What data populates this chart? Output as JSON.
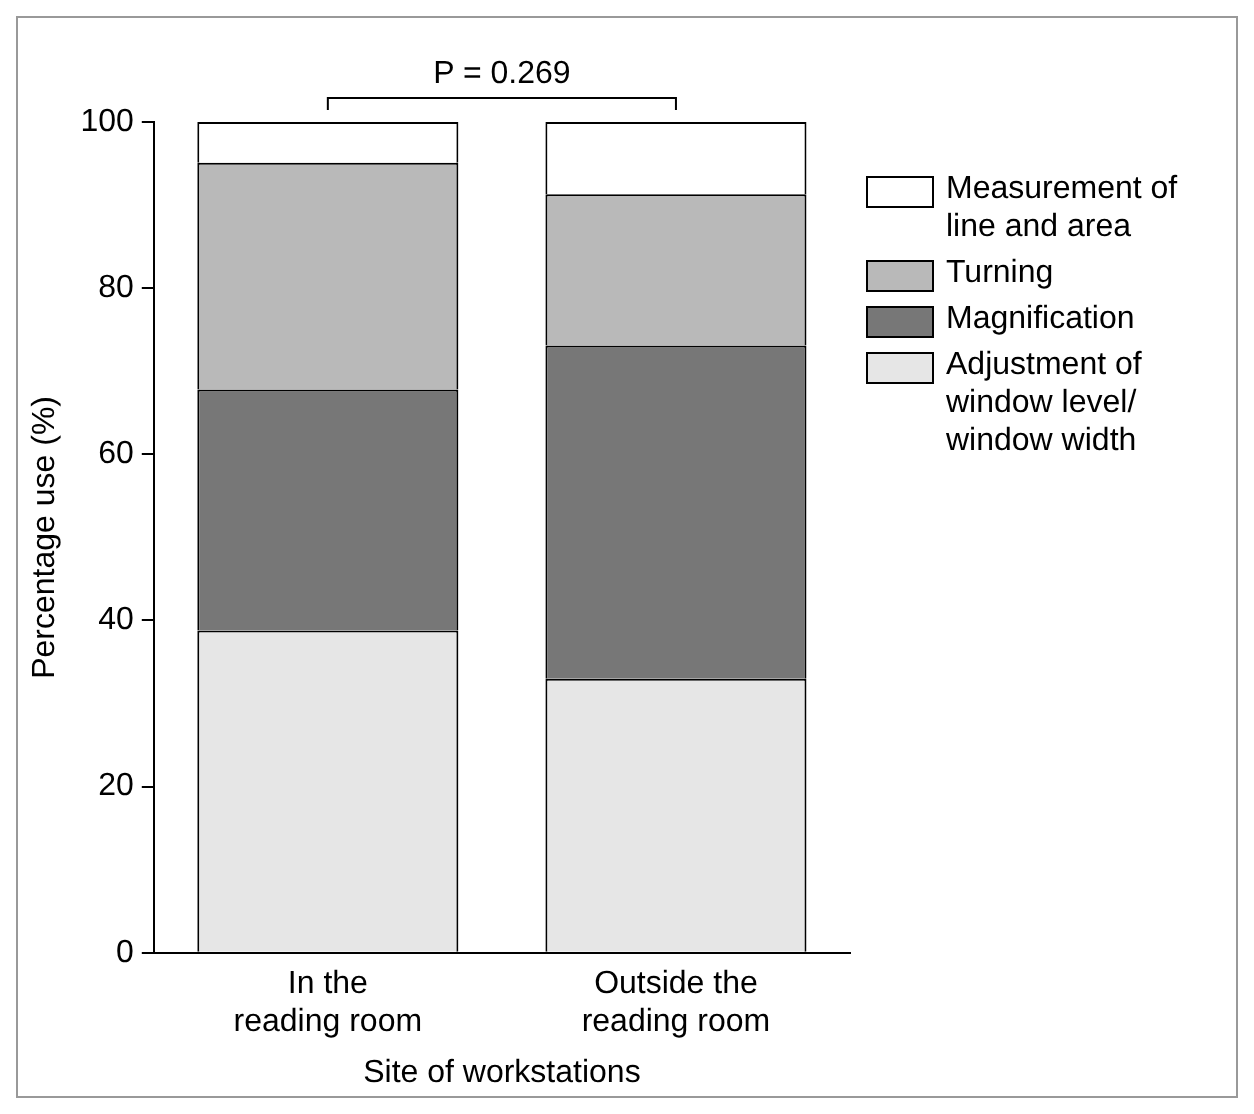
{
  "chart_data": {
    "type": "bar",
    "stacked": true,
    "xlabel": "Site of workstations",
    "ylabel": "Percentage use (%)",
    "categories": [
      "In the reading room",
      "Outside the reading room"
    ],
    "series": [
      {
        "name": "Adjustment of window level/ window width",
        "color": "#e6e6e6",
        "values": [
          38.8,
          33.0
        ]
      },
      {
        "name": "Magnification",
        "color": "#777777",
        "values": [
          29.0,
          40.1
        ]
      },
      {
        "name": "Turning",
        "color": "#b9b9b9",
        "values": [
          27.3,
          18.2
        ]
      },
      {
        "name": "Measurement of line and area",
        "color": "#ffffff",
        "values": [
          4.9,
          8.7
        ]
      }
    ],
    "ylim": [
      0,
      100
    ],
    "yticks": [
      0,
      20,
      40,
      60,
      80,
      100
    ],
    "grid": false,
    "legend": "right",
    "annotations": [
      "P = 0.269"
    ]
  }
}
